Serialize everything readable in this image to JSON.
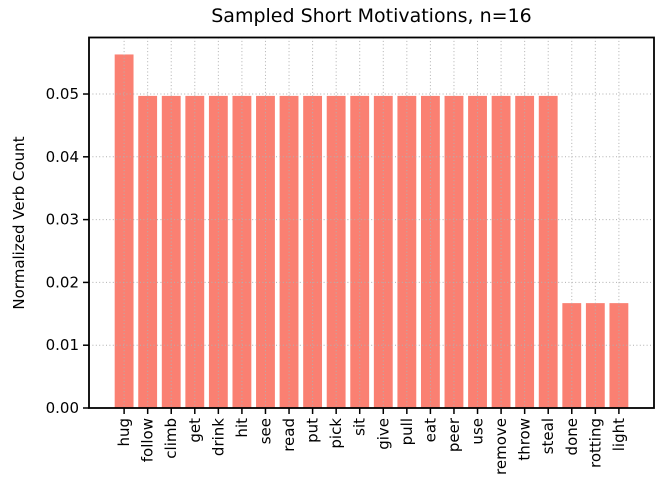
{
  "figure": {
    "title": "Sampled Short Motivations, n=16",
    "ylabel": "Normalized Verb Count",
    "background_color": "#ffffff"
  },
  "chart_data": {
    "type": "bar",
    "title": "Sampled Short Motivations, n=16",
    "xlabel": "",
    "ylabel": "Normalized Verb Count",
    "categories": [
      "hug",
      "follow",
      "climb",
      "get",
      "drink",
      "hit",
      "see",
      "read",
      "put",
      "pick",
      "sit",
      "give",
      "pull",
      "eat",
      "peer",
      "use",
      "remove",
      "throw",
      "steal",
      "done",
      "rotting",
      "light"
    ],
    "values": [
      0.0563,
      0.0497,
      0.0497,
      0.0497,
      0.0497,
      0.0497,
      0.0497,
      0.0497,
      0.0497,
      0.0497,
      0.0497,
      0.0497,
      0.0497,
      0.0497,
      0.0497,
      0.0497,
      0.0497,
      0.0497,
      0.0497,
      0.0167,
      0.0167,
      0.0167
    ],
    "ylim": [
      0,
      0.059
    ],
    "yticks": [
      0,
      0.01,
      0.02,
      0.03,
      0.04,
      0.05
    ],
    "ytick_labels": [
      "0.00",
      "0.01",
      "0.02",
      "0.03",
      "0.04",
      "0.05"
    ],
    "x_tick_rotation": 90,
    "bar_color": "#fa8072",
    "grid": true,
    "grid_color": "#b0b0b0",
    "grid_style": "dotted",
    "axis_color": "#000000",
    "legend": "none"
  }
}
